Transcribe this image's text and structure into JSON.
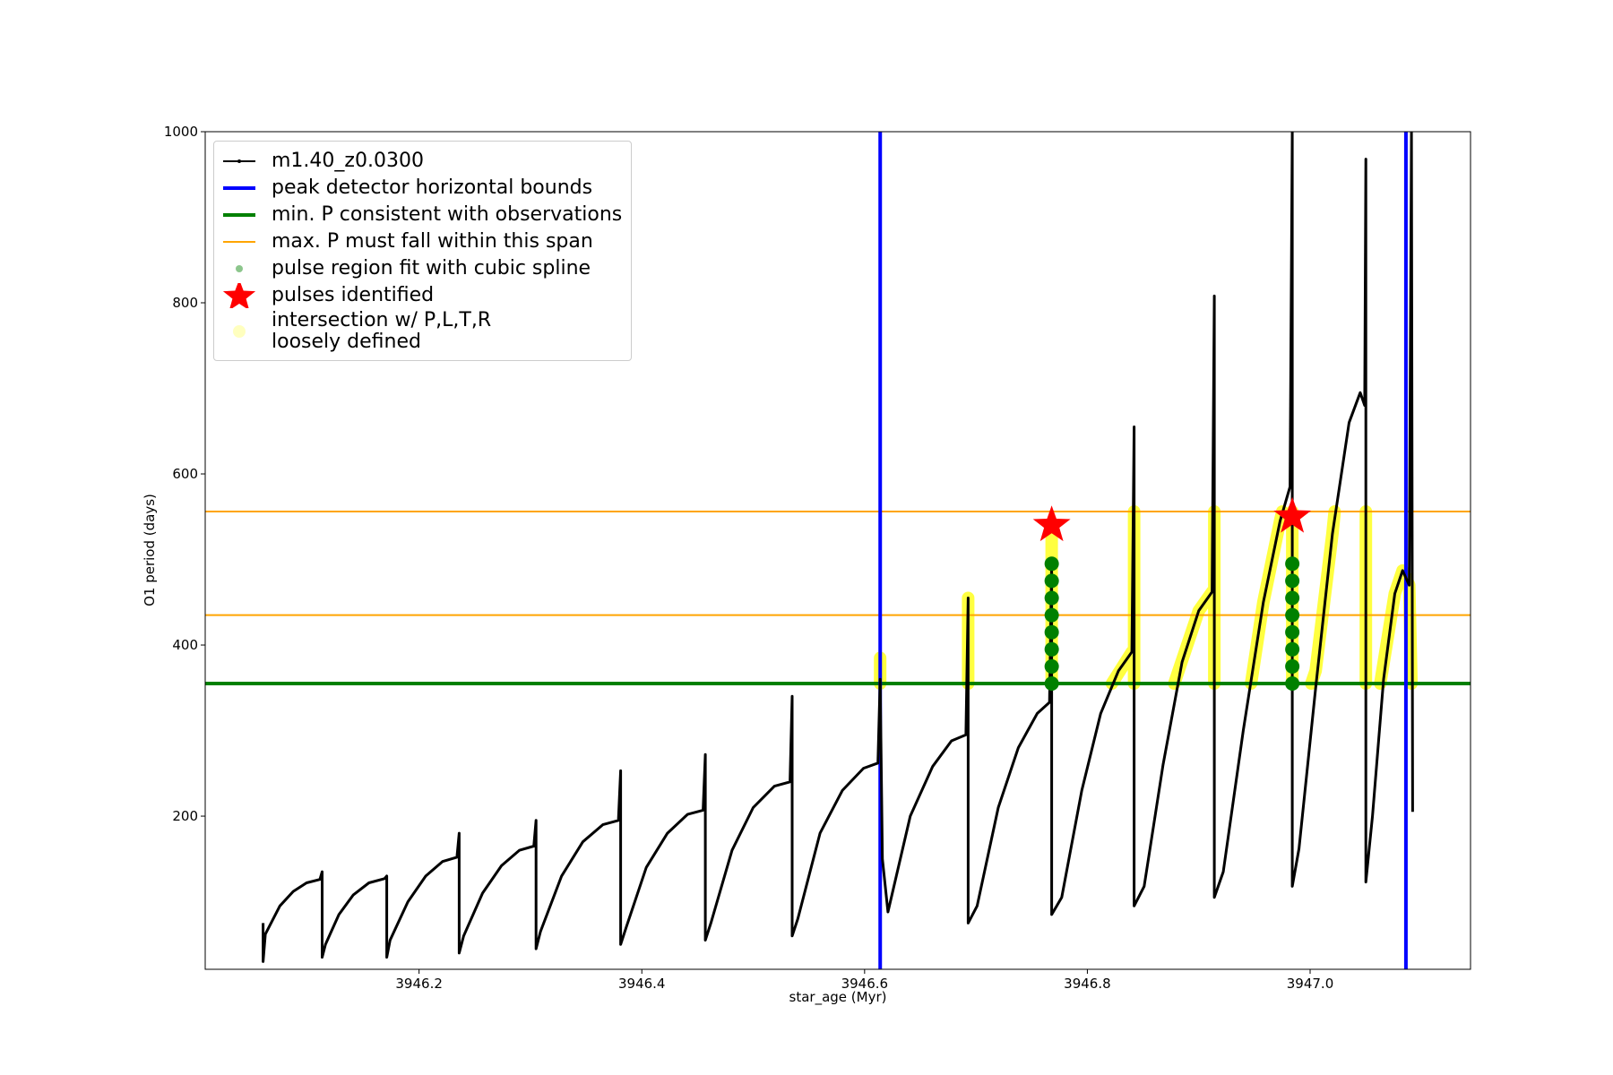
{
  "chart_data": {
    "type": "line",
    "xlabel": "star_age (Myr)",
    "ylabel": "O1 period (days)",
    "xlim": [
      3946.008,
      3947.144
    ],
    "ylim": [
      21,
      1000
    ],
    "xticks": [
      3946.2,
      3946.4,
      3946.6,
      3946.8,
      {
        "value": 3947,
        "label": "3947.0"
      }
    ],
    "yticks": [
      200,
      400,
      600,
      800,
      1000
    ],
    "grid": false,
    "legend": "upper left",
    "series": [
      {
        "name": "m1.40_z0.0300",
        "type": "line",
        "color": "#000000",
        "x": [
          3946.06,
          3946.06,
          3946.062,
          3946.075,
          3946.087,
          3946.099,
          3946.111,
          3946.113,
          3946.113,
          3946.116,
          3946.128,
          3946.141,
          3946.155,
          3946.169,
          3946.171,
          3946.171,
          3946.174,
          3946.19,
          3946.206,
          3946.221,
          3946.234,
          3946.236,
          3946.236,
          3946.24,
          3946.257,
          3946.274,
          3946.29,
          3946.303,
          3946.305,
          3946.305,
          3946.309,
          3946.328,
          3946.347,
          3946.365,
          3946.379,
          3946.381,
          3946.381,
          3946.386,
          3946.404,
          3946.423,
          3946.441,
          3946.455,
          3946.457,
          3946.457,
          3946.462,
          3946.481,
          3946.5,
          3946.519,
          3946.533,
          3946.535,
          3946.535,
          3946.54,
          3946.56,
          3946.58,
          3946.599,
          3946.612,
          3946.614,
          3946.616,
          3946.621,
          3946.641,
          3946.661,
          3946.678,
          3946.691,
          3946.693,
          3946.693,
          3946.701,
          3946.72,
          3946.738,
          3946.755,
          3946.766,
          3946.768,
          3946.768,
          3946.777,
          3946.795,
          3946.812,
          3946.828,
          3946.84,
          3946.842,
          3946.842,
          3946.851,
          3946.868,
          3946.885,
          3946.9,
          3946.912,
          3946.914,
          3946.914,
          3946.922,
          3946.94,
          3946.958,
          3946.973,
          3946.982,
          3946.984,
          3946.984,
          3946.99,
          3947.005,
          3947.02,
          3947.035,
          3947.045,
          3947.049,
          3947.05,
          3947.05,
          3947.056,
          3947.066,
          3947.076,
          3947.083,
          3947.089,
          3947.091,
          3947.092
        ],
        "values": [
          75,
          30,
          62,
          95,
          112,
          122,
          126,
          135,
          35,
          50,
          85,
          108,
          122,
          127,
          130,
          35,
          55,
          100,
          130,
          147,
          152,
          180,
          40,
          60,
          110,
          142,
          160,
          165,
          195,
          45,
          65,
          130,
          170,
          190,
          195,
          253,
          50,
          70,
          140,
          180,
          202,
          207,
          272,
          55,
          75,
          160,
          210,
          235,
          240,
          340,
          60,
          80,
          180,
          230,
          256,
          262,
          360,
          150,
          88,
          200,
          258,
          288,
          295,
          455,
          75,
          95,
          210,
          280,
          320,
          333,
          500,
          85,
          105,
          230,
          320,
          370,
          392,
          655,
          95,
          118,
          260,
          380,
          440,
          462,
          808,
          105,
          135,
          300,
          450,
          545,
          585,
          1000,
          118,
          162,
          350,
          530,
          660,
          695,
          680,
          968,
          123,
          200,
          360,
          460,
          487,
          470,
          1000,
          205
        ]
      },
      {
        "name": "peak detector horizontal bounds",
        "type": "vline",
        "color": "#0000ff",
        "x": [
          3946.614,
          3947.086
        ]
      },
      {
        "name": "min. P consistent with observations",
        "type": "hline",
        "color": "#008000",
        "values": [
          355
        ]
      },
      {
        "name": "max. P must fall within this span",
        "type": "hline",
        "color": "#ffa500",
        "values": [
          435,
          556
        ]
      },
      {
        "name": "pulse region fit with cubic spline",
        "type": "scatter",
        "marker": "circle",
        "color": "#008000",
        "x": [
          3946.768,
          3946.768,
          3946.768,
          3946.768,
          3946.768,
          3946.768,
          3946.768,
          3946.768,
          3946.984,
          3946.984,
          3946.984,
          3946.984,
          3946.984,
          3946.984,
          3946.984,
          3946.984
        ],
        "values": [
          355,
          375,
          395,
          415,
          435,
          455,
          475,
          495,
          355,
          375,
          395,
          415,
          435,
          455,
          475,
          495
        ]
      },
      {
        "name": "pulses identified",
        "type": "scatter",
        "marker": "star",
        "color": "#ff0000",
        "x": [
          3946.768,
          3946.984
        ],
        "values": [
          540,
          550
        ]
      },
      {
        "name": "intersection w/ P,L,T,R\nloosely defined",
        "type": "band",
        "color": "#ffff00",
        "x": [
          3946.614,
          3946.614,
          null,
          3946.693,
          3946.693,
          null,
          3946.768,
          3946.768,
          null,
          3946.842,
          3946.842,
          null,
          3946.822,
          3946.84,
          null,
          3946.878,
          3946.9,
          3946.912,
          null,
          3946.914,
          3946.914,
          null,
          3946.947,
          3946.958,
          3946.973,
          3946.975,
          null,
          3946.984,
          3946.984,
          null,
          3947.001,
          3947.005,
          3947.02,
          3947.022,
          null,
          3947.05,
          3947.05,
          null,
          3947.063,
          3947.076,
          3947.083,
          3947.089,
          3947.091
        ],
        "values": [
          355,
          385,
          null,
          355,
          455,
          null,
          355,
          540,
          null,
          355,
          556,
          null,
          355,
          392,
          null,
          355,
          440,
          462,
          null,
          355,
          556,
          null,
          355,
          450,
          545,
          556,
          null,
          355,
          556,
          null,
          355,
          370,
          530,
          556,
          null,
          355,
          556,
          null,
          355,
          460,
          487,
          470,
          355
        ]
      }
    ]
  }
}
